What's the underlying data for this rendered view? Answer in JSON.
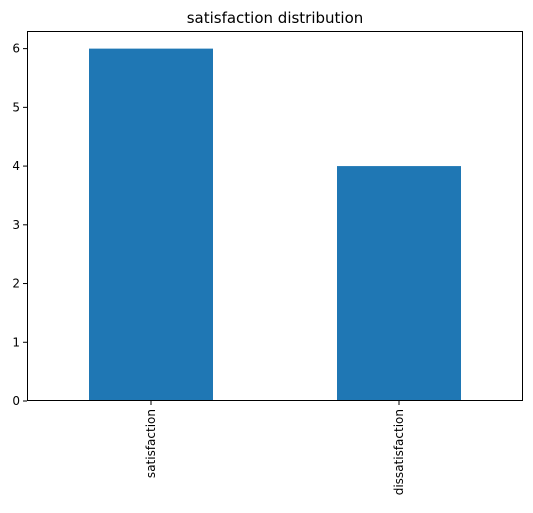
{
  "chart_data": {
    "type": "bar",
    "title": "satisfaction distribution",
    "categories": [
      "satisfaction",
      "dissatisfaction"
    ],
    "values": [
      6,
      4
    ],
    "xlabel": "",
    "ylabel": "",
    "ylim": [
      0,
      6.3
    ],
    "yticks": [
      "0",
      "1",
      "2",
      "3",
      "4",
      "5",
      "6"
    ],
    "grid": false,
    "legend": "none",
    "bar_color": "#1f77b4",
    "x_tick_rotation": "vertical"
  }
}
